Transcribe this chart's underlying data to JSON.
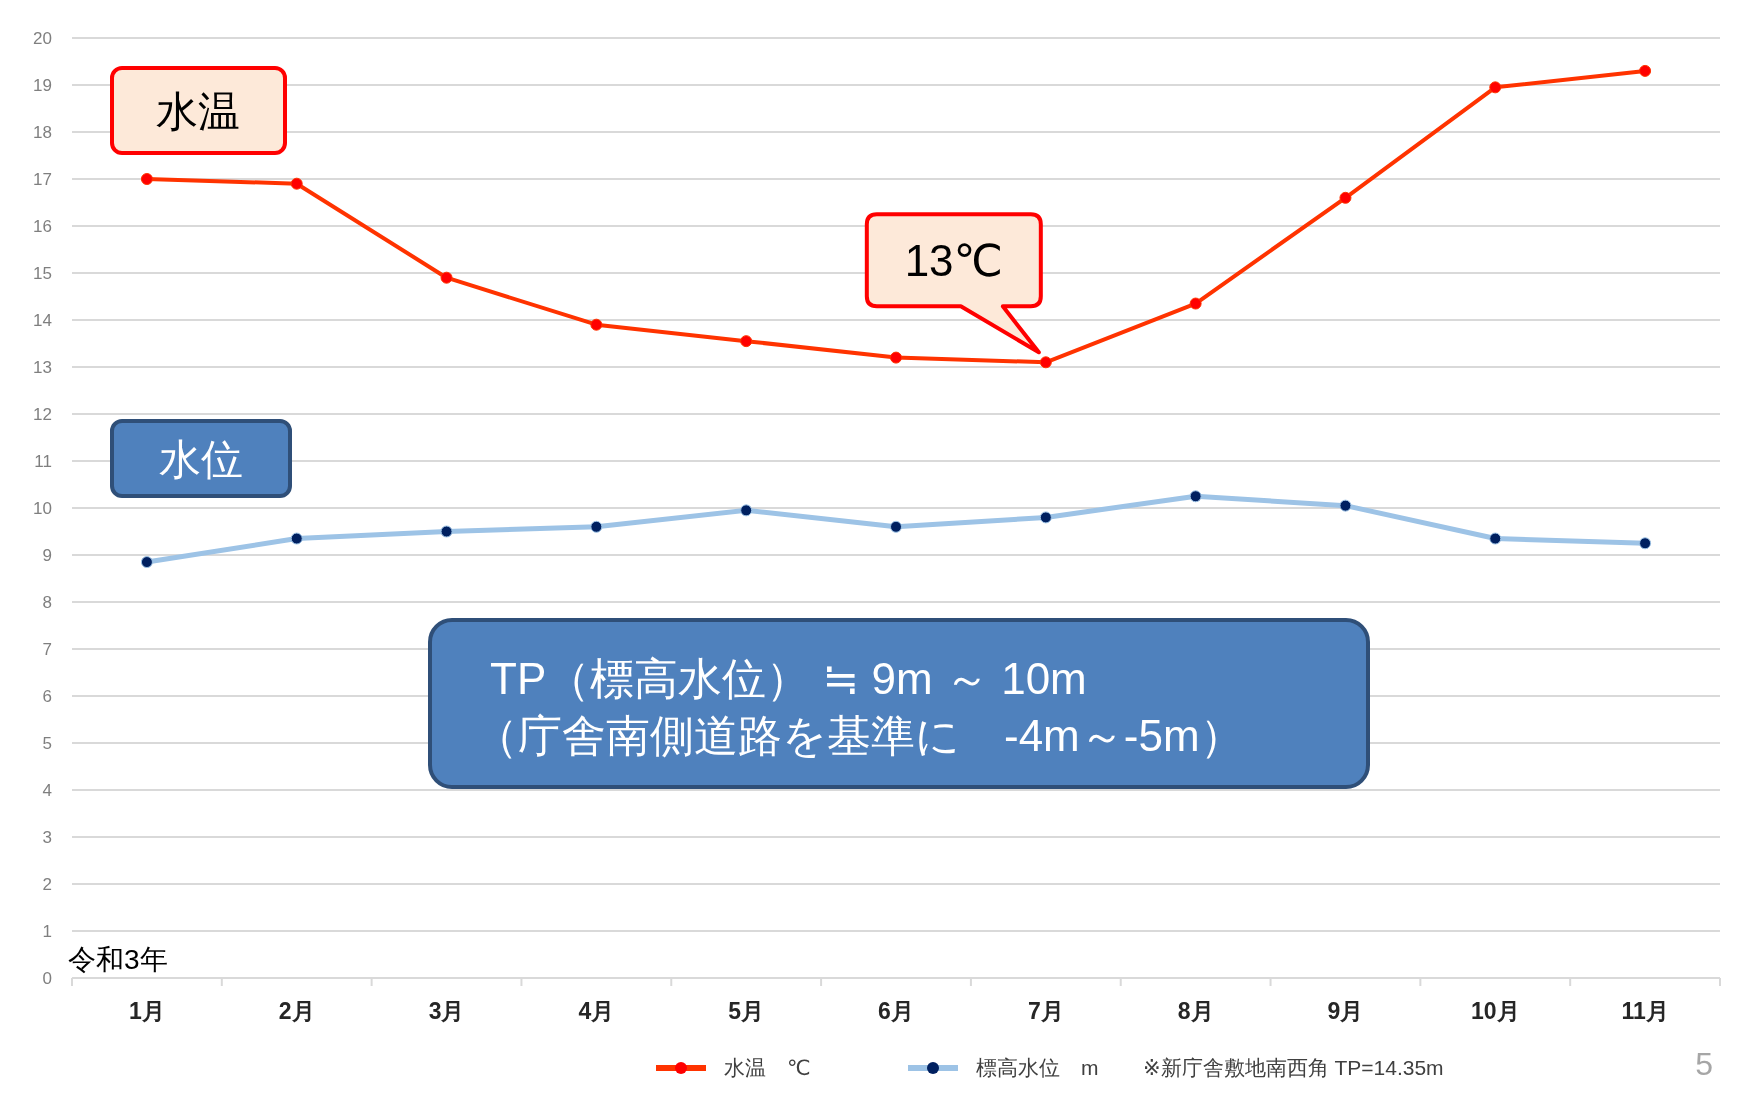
{
  "chart_data": {
    "type": "line",
    "categories": [
      "1月",
      "2月",
      "3月",
      "4月",
      "5月",
      "6月",
      "7月",
      "8月",
      "9月",
      "10月",
      "11月"
    ],
    "series": [
      {
        "name": "水温　℃",
        "color": "#ff3300",
        "values": [
          17.0,
          16.9,
          14.9,
          13.9,
          13.55,
          13.2,
          13.1,
          14.35,
          16.6,
          18.95,
          19.3
        ]
      },
      {
        "name": "標高水位　m",
        "color": "#9dc3e6",
        "values": [
          8.85,
          9.35,
          9.5,
          9.6,
          9.95,
          9.6,
          9.8,
          10.25,
          10.05,
          9.35,
          9.25
        ]
      }
    ],
    "ylim": [
      0,
      20
    ],
    "yticks": [
      0,
      1,
      2,
      3,
      4,
      5,
      6,
      7,
      8,
      9,
      10,
      11,
      12,
      13,
      14,
      15,
      16,
      17,
      18,
      19,
      20
    ],
    "grid": "y",
    "legend": "bottom",
    "marker": "circle",
    "line_style": "solid",
    "annotations": [
      "水温",
      {
        "text": "13℃",
        "x": "7月",
        "y": 13.1
      },
      "水位",
      "TP（標高水位） ≒ 9m ～ 10m\n（庁舎南側道路を基準に　-4m～-5m）",
      "令和3年",
      "※新庁舎敷地南西角 TP=14.35m",
      "5"
    ]
  }
}
